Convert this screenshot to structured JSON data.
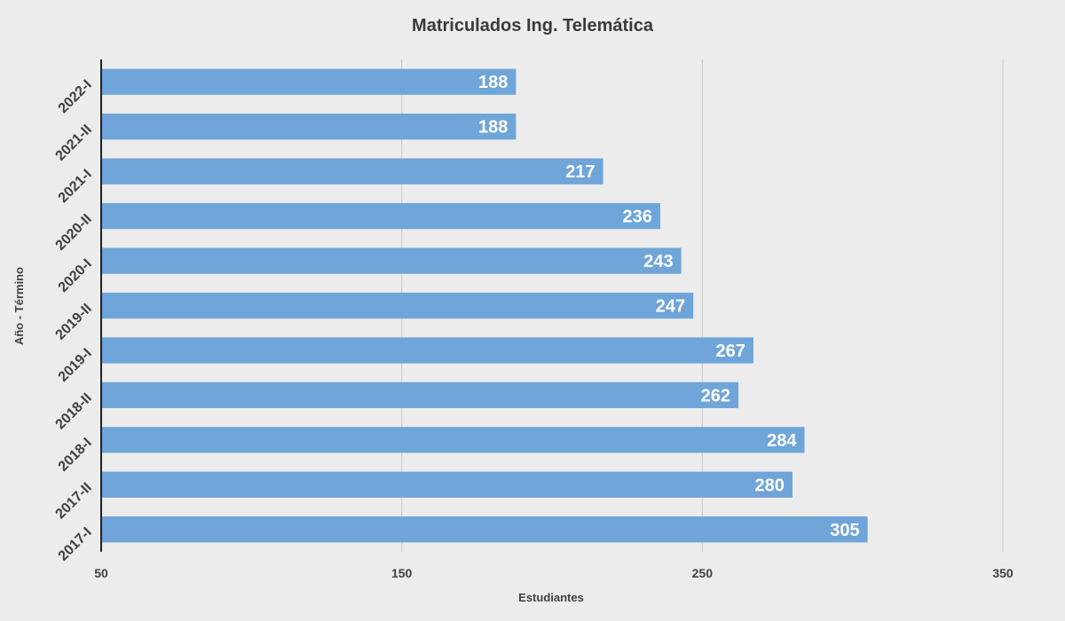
{
  "chart_data": {
    "type": "bar",
    "orientation": "horizontal",
    "title": "Matriculados Ing. Telemática",
    "xlabel": "Estudiantes",
    "ylabel": "Año - Término",
    "categories": [
      "2022-I",
      "2021-II",
      "2021-I",
      "2020-II",
      "2020-I",
      "2019-II",
      "2019-I",
      "2018-II",
      "2018-I",
      "2017-II",
      "2017-I"
    ],
    "values": [
      188,
      188,
      217,
      236,
      243,
      247,
      267,
      262,
      284,
      280,
      305
    ],
    "xlim": [
      50,
      350
    ],
    "xticks": [
      50,
      150,
      250,
      350
    ],
    "grid": true,
    "bar_color": "#6fa5d9",
    "label_color": "#ffffff"
  }
}
